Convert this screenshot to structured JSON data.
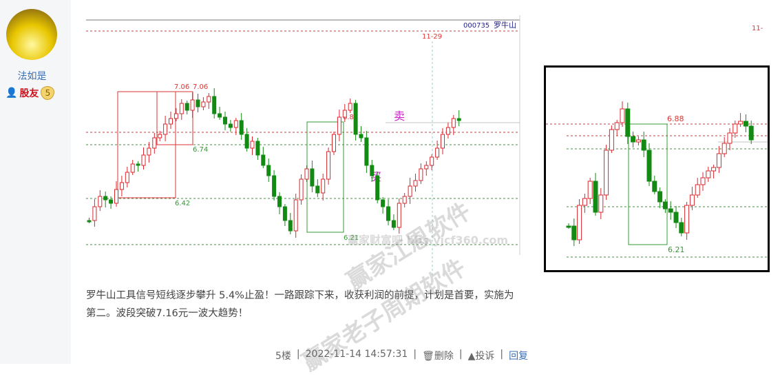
{
  "user": {
    "name": "法如是",
    "group": "股友",
    "level": "5",
    "avatar_icon": "avatar-image",
    "group_icon": "user-rank-icon"
  },
  "chart": {
    "code": "000735",
    "name": "罗牛山",
    "date_marker": "11-29",
    "levels": {
      "high1": "7.06",
      "high2": "7.06",
      "sell_level": "6.88",
      "l674": "6.74",
      "l642": "6.42",
      "low": "6.21"
    },
    "sell": "卖",
    "buy": "买",
    "up_color": "#d9262c",
    "down_color": "#138a13"
  },
  "chart2": {
    "sell_level": "6.88",
    "low": "6.21"
  },
  "corner_text": "11-",
  "post": {
    "text": "罗牛山工具信号短线逐步攀升 5.4%止盈！一路跟踪下来，收获利润的前提，计划是首要，实施为第二。波段突破7.16元一波大趋势！"
  },
  "watermarks": [
    "赢家江恩软件",
    "赢家老子周期软件",
    "赢家财富吧 bbs.yjcf360.com"
  ],
  "meta": {
    "floor": "5楼",
    "time": "2022-11-14 14:57:31",
    "delete": "删除",
    "report": "投诉",
    "reply": "回复",
    "sep": "|"
  }
}
